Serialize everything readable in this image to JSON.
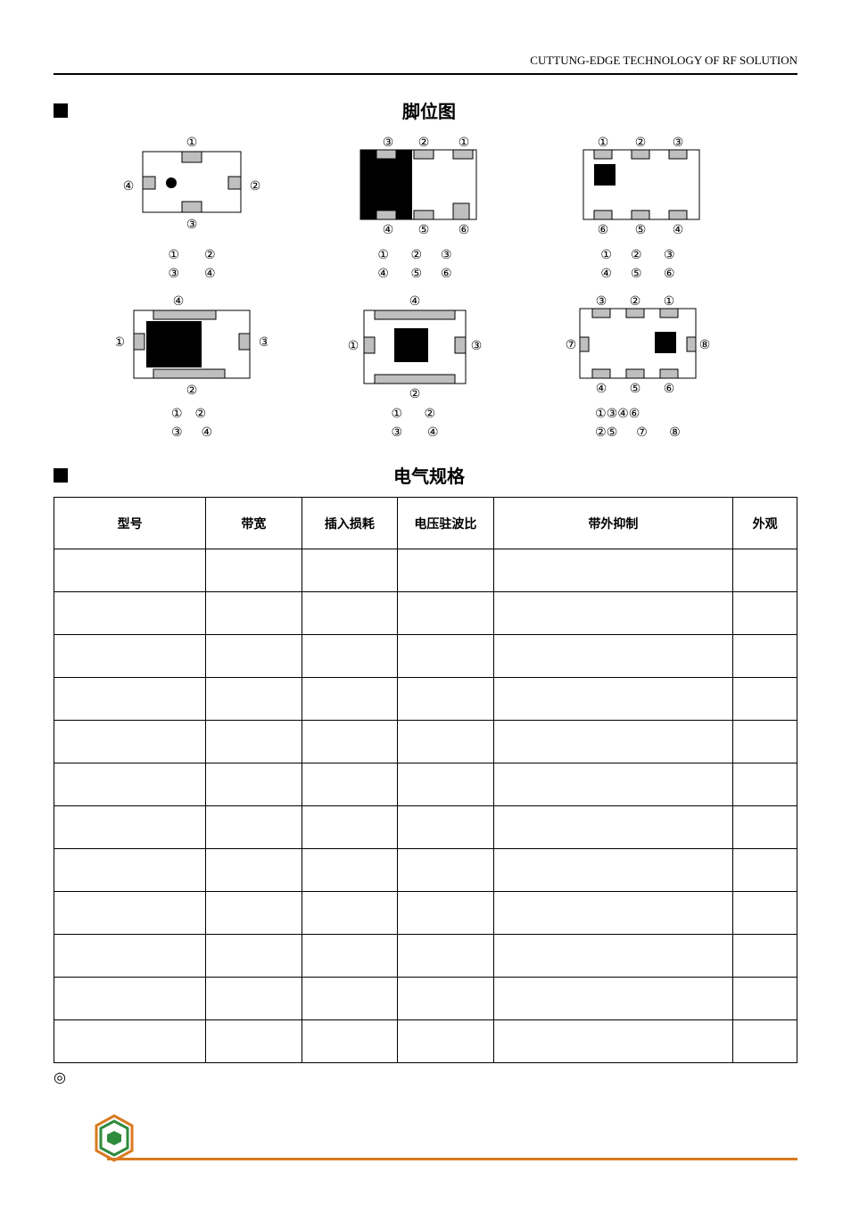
{
  "header_right": "CUTTUNG-EDGE TECHNOLOGY OF RF SOLUTION",
  "section_pin_title": "脚位图",
  "section_spec_title": "电气规格",
  "footnote_symbol": "◎",
  "circled": [
    "①",
    "②",
    "③",
    "④",
    "⑤",
    "⑥",
    "⑦",
    "⑧"
  ],
  "legends": {
    "a": "①        ②\n③        ④",
    "b": "①       ②      ③\n④       ⑤      ⑥",
    "c": "①      ②       ③\n④      ⑤       ⑥",
    "d": "①    ②\n③      ④",
    "e": "①       ②\n③        ④",
    "f": "①③④⑥\n②⑤      ⑦       ⑧"
  },
  "table": {
    "columns": [
      {
        "label": "型号",
        "width": "19%"
      },
      {
        "label": "带宽",
        "width": "12%"
      },
      {
        "label": "插入损耗",
        "width": "12%"
      },
      {
        "label": "电压驻波比",
        "width": "12%"
      },
      {
        "label": "带外抑制",
        "width": "30%"
      },
      {
        "label": "外观",
        "width": "8%"
      }
    ],
    "row_count": 12
  },
  "colors": {
    "accent": "#d97a1f",
    "logo_green": "#2e8b3d",
    "pad_fill": "#bfbfbf",
    "gnd_fill": "#000000",
    "outline": "#000000",
    "bg": "#ffffff"
  }
}
